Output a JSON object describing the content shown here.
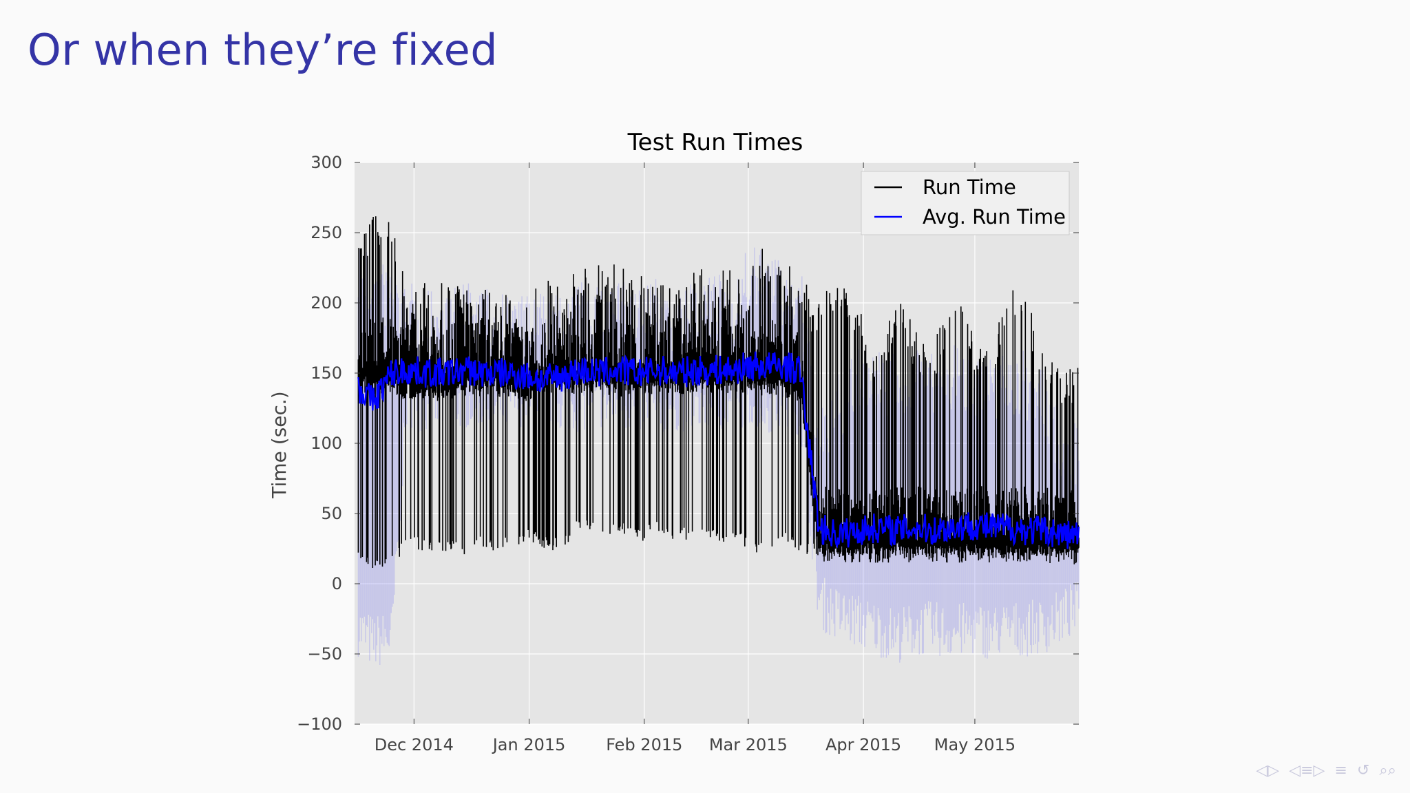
{
  "slide": {
    "title": "Or when they’re fixed"
  },
  "colors": {
    "title": "#3434a6",
    "plot_bg": "#e5e5e5",
    "run_time": "#000000",
    "avg_run_time": "#0000ff",
    "band": "#8c8cf0"
  },
  "chart_data": {
    "type": "line",
    "title": "Test Run Times",
    "xlabel": "",
    "ylabel": "Time (sec.)",
    "xlim": [
      "2014-11-15",
      "2015-05-29"
    ],
    "ylim": [
      -100,
      300
    ],
    "yticks": [
      -100,
      -50,
      0,
      50,
      100,
      150,
      200,
      250,
      300
    ],
    "ytick_labels": [
      "−100",
      "−50",
      "0",
      "50",
      "100",
      "150",
      "200",
      "250",
      "300"
    ],
    "xticks": [
      "2014-12-01",
      "2015-01-01",
      "2015-02-01",
      "2015-03-01",
      "2015-04-01",
      "2015-05-01"
    ],
    "xtick_labels": [
      "Dec 2014",
      "Jan 2015",
      "Feb 2015",
      "Mar 2015",
      "Apr 2015",
      "May 2015"
    ],
    "grid": true,
    "legend_position": "top-right",
    "series": [
      {
        "name": "Run Time",
        "color": "#000000",
        "x": [
          "2014-11-16",
          "2014-11-20",
          "2014-11-25",
          "2014-11-29",
          "2014-12-05",
          "2014-12-10",
          "2014-12-15",
          "2014-12-20",
          "2014-12-25",
          "2014-12-31",
          "2015-01-05",
          "2015-01-10",
          "2015-01-15",
          "2015-01-20",
          "2015-01-25",
          "2015-01-31",
          "2015-02-05",
          "2015-02-10",
          "2015-02-15",
          "2015-02-20",
          "2015-02-25",
          "2015-03-01",
          "2015-03-05",
          "2015-03-10",
          "2015-03-15",
          "2015-03-20",
          "2015-03-25",
          "2015-03-31",
          "2015-04-05",
          "2015-04-10",
          "2015-04-15",
          "2015-04-20",
          "2015-04-25",
          "2015-05-01",
          "2015-05-05",
          "2015-05-10",
          "2015-05-15",
          "2015-05-20",
          "2015-05-25",
          "2015-05-29"
        ],
        "lows": [
          20,
          8,
          10,
          25,
          22,
          22,
          20,
          25,
          22,
          30,
          25,
          22,
          40,
          30,
          35,
          30,
          35,
          30,
          30,
          28,
          30,
          25,
          20,
          30,
          20,
          18,
          20,
          20,
          22,
          22,
          20,
          20,
          20,
          20,
          20,
          20,
          20,
          20,
          20,
          22
        ],
        "highs": [
          240,
          270,
          265,
          210,
          215,
          215,
          210,
          210,
          210,
          200,
          220,
          210,
          230,
          230,
          230,
          220,
          220,
          210,
          225,
          225,
          225,
          220,
          250,
          230,
          225,
          200,
          230,
          200,
          160,
          210,
          180,
          170,
          215,
          175,
          165,
          225,
          210,
          160,
          155,
          155
        ],
        "typical": [
          150,
          150,
          150,
          145,
          145,
          145,
          148,
          148,
          148,
          145,
          148,
          150,
          150,
          150,
          148,
          148,
          150,
          150,
          150,
          150,
          150,
          150,
          148,
          148,
          145,
          30,
          30,
          30,
          30,
          30,
          30,
          30,
          30,
          30,
          30,
          30,
          30,
          30,
          28,
          28
        ]
      },
      {
        "name": "Avg. Run Time",
        "color": "#0000ff",
        "x": [
          "2014-11-16",
          "2014-11-20",
          "2014-11-25",
          "2014-11-29",
          "2014-12-05",
          "2014-12-10",
          "2014-12-15",
          "2014-12-20",
          "2014-12-25",
          "2014-12-31",
          "2015-01-05",
          "2015-01-10",
          "2015-01-15",
          "2015-01-20",
          "2015-01-25",
          "2015-01-31",
          "2015-02-05",
          "2015-02-10",
          "2015-02-15",
          "2015-02-20",
          "2015-02-25",
          "2015-03-01",
          "2015-03-05",
          "2015-03-10",
          "2015-03-15",
          "2015-03-20",
          "2015-03-25",
          "2015-03-31",
          "2015-04-05",
          "2015-04-10",
          "2015-04-15",
          "2015-04-20",
          "2015-04-25",
          "2015-05-01",
          "2015-05-05",
          "2015-05-10",
          "2015-05-15",
          "2015-05-20",
          "2015-05-25",
          "2015-05-29"
        ],
        "values": [
          140,
          130,
          150,
          152,
          150,
          150,
          152,
          150,
          150,
          148,
          145,
          148,
          152,
          150,
          152,
          150,
          152,
          150,
          152,
          152,
          152,
          155,
          155,
          155,
          152,
          40,
          35,
          38,
          40,
          38,
          40,
          38,
          40,
          42,
          40,
          40,
          38,
          38,
          35,
          35
        ],
        "band_low": [
          -40,
          -50,
          -45,
          120,
          120,
          120,
          122,
          120,
          118,
          125,
          125,
          120,
          120,
          122,
          120,
          118,
          118,
          120,
          120,
          120,
          120,
          125,
          120,
          118,
          118,
          -20,
          -30,
          -35,
          -40,
          -45,
          -40,
          -40,
          -42,
          -40,
          -42,
          -40,
          -40,
          -38,
          -30,
          -25
        ],
        "band_high": [
          250,
          230,
          230,
          215,
          210,
          210,
          215,
          210,
          210,
          205,
          210,
          205,
          215,
          220,
          220,
          210,
          220,
          210,
          215,
          220,
          220,
          240,
          240,
          230,
          230,
          120,
          150,
          170,
          170,
          165,
          170,
          165,
          170,
          170,
          160,
          170,
          165,
          150,
          120,
          120
        ]
      }
    ]
  },
  "nav": {
    "icons": [
      "first-frame-icon",
      "prev-frame-icon",
      "section-icon",
      "next-frame-icon",
      "outline-icon",
      "undo-icon",
      "search-icon"
    ]
  }
}
